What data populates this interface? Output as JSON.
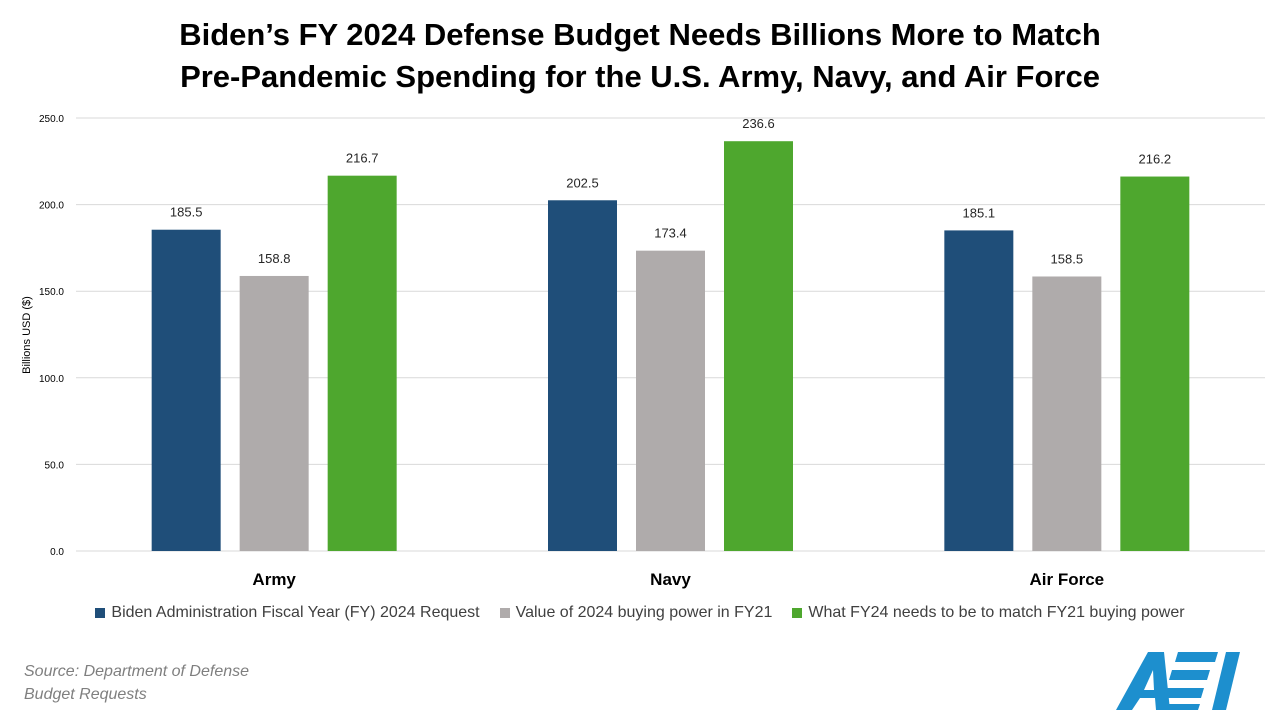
{
  "title_lines": [
    "Biden’s FY 2024 Defense Budget Needs Billions More to Match",
    "Pre-Pandemic Spending for the U.S. Army, Navy, and Air Force"
  ],
  "chart_data": {
    "type": "bar",
    "title": "Biden’s FY 2024 Defense Budget Needs Billions More to Match Pre-Pandemic Spending for the U.S. Army, Navy, and Air Force",
    "categories": [
      "Army",
      "Navy",
      "Air Force"
    ],
    "series": [
      {
        "name": "Biden Administration Fiscal Year (FY) 2024 Request",
        "values": [
          185.5,
          202.5,
          185.1
        ],
        "color": "#1f4e79"
      },
      {
        "name": "Value of 2024 buying power in FY21",
        "values": [
          158.8,
          173.4,
          158.5
        ],
        "color": "#afabab"
      },
      {
        "name": "What FY24 needs to be to match FY21 buying power",
        "values": [
          216.7,
          236.6,
          216.2
        ],
        "color": "#4ea72e"
      }
    ],
    "xlabel": "",
    "ylabel": "Billions USD ($)",
    "ylim": [
      0,
      250
    ],
    "yticks": [
      "0.0",
      "50.0",
      "100.0",
      "150.0",
      "200.0",
      "250.0"
    ],
    "grid": true,
    "legend_position": "bottom"
  },
  "source_lines": [
    "Source: Department of Defense",
    "Budget Requests"
  ],
  "logo": {
    "name": "aei-logo",
    "color": "#1d8fce"
  }
}
